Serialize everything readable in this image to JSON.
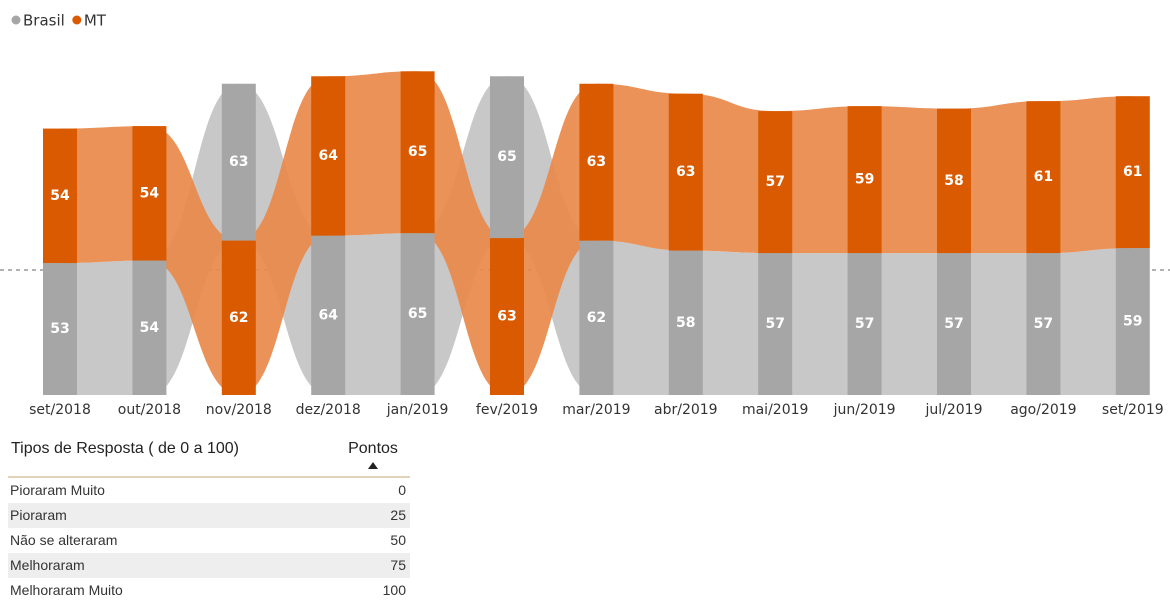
{
  "chart_data": {
    "type": "ribbon",
    "categories": [
      "set/2018",
      "out/2018",
      "nov/2018",
      "dez/2018",
      "jan/2019",
      "fev/2019",
      "mar/2019",
      "abr/2019",
      "mai/2019",
      "jun/2019",
      "jul/2019",
      "ago/2019",
      "set/2019"
    ],
    "series": [
      {
        "name": "Brasil",
        "color": "#a6a6a6",
        "ribbon_color": "#c8c8c8",
        "values": [
          53,
          54,
          63,
          64,
          65,
          65,
          62,
          58,
          57,
          57,
          57,
          57,
          59
        ]
      },
      {
        "name": "MT",
        "color": "#d95a00",
        "ribbon_color": "#e8894a",
        "values": [
          54,
          54,
          62,
          64,
          65,
          63,
          63,
          63,
          57,
          59,
          58,
          61,
          61
        ]
      }
    ],
    "legend": "top-left"
  },
  "table": {
    "columns": [
      "Tipos de Resposta ( de 0 a 100)",
      "Pontos"
    ],
    "rows": [
      [
        "Pioraram Muito",
        0
      ],
      [
        "Pioraram",
        25
      ],
      [
        "Não se alteraram",
        50
      ],
      [
        "Melhoraram",
        75
      ],
      [
        "Melhoraram Muito",
        100
      ]
    ]
  }
}
